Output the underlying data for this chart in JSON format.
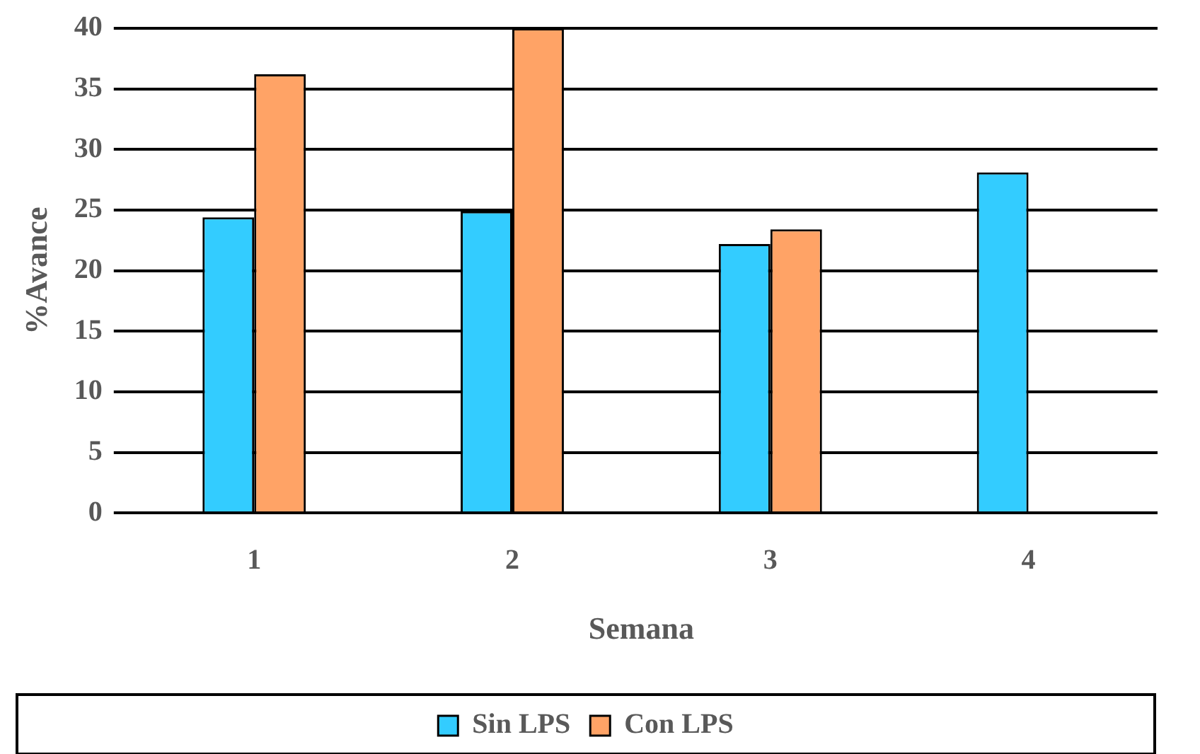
{
  "chart_data": {
    "type": "bar",
    "xlabel": "Semana",
    "ylabel": "%Avance",
    "categories": [
      "1",
      "2",
      "3",
      "4"
    ],
    "series": [
      {
        "name": "Sin LPS",
        "color": "#33ccff",
        "values": [
          24.4,
          24.9,
          22.2,
          28.1
        ]
      },
      {
        "name": "Con LPS",
        "color": "#ffa366",
        "values": [
          36.2,
          40,
          23.4,
          0
        ]
      }
    ],
    "ylim": [
      0,
      40
    ],
    "yticks": [
      0,
      5,
      10,
      15,
      20,
      25,
      30,
      35,
      40
    ],
    "grid": "y",
    "legend": "bottom"
  }
}
